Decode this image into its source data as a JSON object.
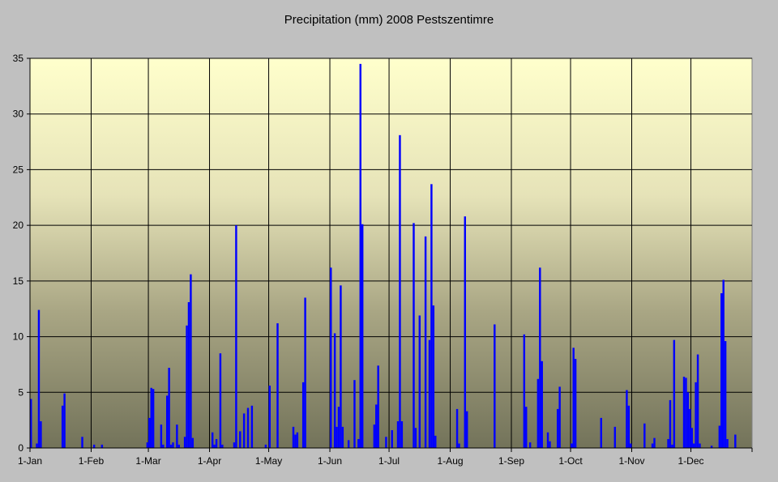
{
  "chart_data": {
    "type": "bar",
    "title": "Precipitation (mm) 2008 Pestszentimre",
    "xlabel": "",
    "ylabel": "",
    "ylim": [
      0,
      35
    ],
    "yticks": [
      0,
      5,
      10,
      15,
      20,
      25,
      30,
      35
    ],
    "days_in_year": 366,
    "xticks": [
      {
        "label": "1-Jan",
        "day": 0
      },
      {
        "label": "1-Feb",
        "day": 31
      },
      {
        "label": "1-Mar",
        "day": 60
      },
      {
        "label": "1-Apr",
        "day": 91
      },
      {
        "label": "1-May",
        "day": 121
      },
      {
        "label": "1-Jun",
        "day": 152
      },
      {
        "label": "1-Jul",
        "day": 182
      },
      {
        "label": "1-Aug",
        "day": 213
      },
      {
        "label": "1-Sep",
        "day": 244
      },
      {
        "label": "1-Oct",
        "day": 274
      },
      {
        "label": "1-Nov",
        "day": 305
      },
      {
        "label": "1-Dec",
        "day": 335
      }
    ],
    "grid": true,
    "bar_color": "#0000ff",
    "series": [
      {
        "name": "Precipitation (mm)",
        "points": [
          [
            0,
            4.4
          ],
          [
            3,
            0.4
          ],
          [
            4,
            12.4
          ],
          [
            5,
            2.4
          ],
          [
            16,
            3.8
          ],
          [
            17,
            4.9
          ],
          [
            26,
            1.0
          ],
          [
            32,
            0.3
          ],
          [
            36,
            0.3
          ],
          [
            59,
            0.5
          ],
          [
            60,
            2.7
          ],
          [
            61,
            5.4
          ],
          [
            62,
            5.3
          ],
          [
            66,
            2.1
          ],
          [
            67,
            0.3
          ],
          [
            69,
            4.7
          ],
          [
            70,
            7.2
          ],
          [
            71,
            0.3
          ],
          [
            72,
            0.5
          ],
          [
            74,
            2.1
          ],
          [
            75,
            0.3
          ],
          [
            78,
            1.0
          ],
          [
            79,
            11.0
          ],
          [
            80,
            13.1
          ],
          [
            81,
            15.6
          ],
          [
            82,
            0.9
          ],
          [
            92,
            1.4
          ],
          [
            93,
            0.3
          ],
          [
            94,
            0.8
          ],
          [
            96,
            8.5
          ],
          [
            97,
            0.3
          ],
          [
            103,
            0.5
          ],
          [
            104,
            20.0
          ],
          [
            106,
            1.5
          ],
          [
            108,
            3.1
          ],
          [
            110,
            3.6
          ],
          [
            112,
            3.8
          ],
          [
            119,
            0.3
          ],
          [
            121,
            5.6
          ],
          [
            125,
            11.2
          ],
          [
            133,
            1.9
          ],
          [
            134,
            1.2
          ],
          [
            135,
            1.4
          ],
          [
            138,
            5.9
          ],
          [
            139,
            13.5
          ],
          [
            152,
            16.2
          ],
          [
            154,
            10.3
          ],
          [
            155,
            1.9
          ],
          [
            156,
            3.7
          ],
          [
            157,
            14.6
          ],
          [
            158,
            1.9
          ],
          [
            161,
            0.7
          ],
          [
            164,
            6.1
          ],
          [
            166,
            0.8
          ],
          [
            167,
            34.5
          ],
          [
            168,
            20.1
          ],
          [
            174,
            2.1
          ],
          [
            175,
            3.9
          ],
          [
            176,
            7.4
          ],
          [
            180,
            1.0
          ],
          [
            183,
            1.6
          ],
          [
            186,
            2.4
          ],
          [
            187,
            28.1
          ],
          [
            188,
            2.4
          ],
          [
            194,
            20.2
          ],
          [
            195,
            1.8
          ],
          [
            197,
            11.9
          ],
          [
            200,
            19.0
          ],
          [
            202,
            9.7
          ],
          [
            203,
            23.7
          ],
          [
            204,
            12.8
          ],
          [
            205,
            1.1
          ],
          [
            216,
            3.5
          ],
          [
            217,
            0.4
          ],
          [
            220,
            20.8
          ],
          [
            221,
            3.3
          ],
          [
            235,
            11.1
          ],
          [
            250,
            10.2
          ],
          [
            251,
            3.7
          ],
          [
            253,
            0.5
          ],
          [
            257,
            6.2
          ],
          [
            258,
            16.2
          ],
          [
            259,
            7.8
          ],
          [
            262,
            1.4
          ],
          [
            263,
            0.6
          ],
          [
            267,
            3.5
          ],
          [
            268,
            5.5
          ],
          [
            274,
            0.4
          ],
          [
            275,
            9.0
          ],
          [
            276,
            8.0
          ],
          [
            289,
            2.7
          ],
          [
            296,
            1.9
          ],
          [
            302,
            5.2
          ],
          [
            303,
            3.8
          ],
          [
            304,
            0.4
          ],
          [
            311,
            2.2
          ],
          [
            315,
            0.4
          ],
          [
            316,
            0.9
          ],
          [
            323,
            0.8
          ],
          [
            324,
            4.3
          ],
          [
            325,
            0.3
          ],
          [
            326,
            9.7
          ],
          [
            331,
            6.4
          ],
          [
            332,
            6.3
          ],
          [
            333,
            5.0
          ],
          [
            334,
            3.5
          ],
          [
            335,
            1.8
          ],
          [
            336,
            0.4
          ],
          [
            337,
            5.9
          ],
          [
            338,
            8.4
          ],
          [
            339,
            0.4
          ],
          [
            345,
            0.2
          ],
          [
            349,
            2.0
          ],
          [
            350,
            13.9
          ],
          [
            351,
            15.1
          ],
          [
            352,
            9.6
          ],
          [
            353,
            0.8
          ],
          [
            357,
            1.2
          ]
        ]
      }
    ]
  }
}
